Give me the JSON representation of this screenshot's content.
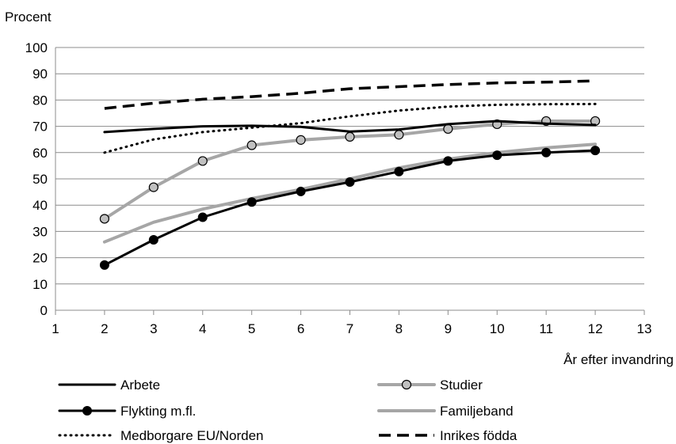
{
  "chart_data": {
    "type": "line",
    "title": "",
    "ylabel": "Procent",
    "xlabel": "År efter invandring",
    "xlim": [
      1,
      13
    ],
    "ylim": [
      0,
      100
    ],
    "xticks": [
      1,
      2,
      3,
      4,
      5,
      6,
      7,
      8,
      9,
      10,
      11,
      12,
      13
    ],
    "yticks": [
      0,
      10,
      20,
      30,
      40,
      50,
      60,
      70,
      80,
      90,
      100
    ],
    "grid": "horizontal",
    "legend_position": "bottom",
    "x": [
      2,
      3,
      4,
      5,
      6,
      7,
      8,
      9,
      10,
      11,
      12
    ],
    "series": [
      {
        "name": "Arbete",
        "values": [
          67.8,
          69,
          70,
          70.2,
          69.8,
          68,
          68.8,
          70.8,
          72,
          71,
          70.5
        ],
        "color": "#000000",
        "style": "solid",
        "marker": "none"
      },
      {
        "name": "Studier",
        "values": [
          34.8,
          46.8,
          56.8,
          62.8,
          64.8,
          66,
          66.8,
          69,
          70.8,
          72,
          72
        ],
        "color": "#a6a6a6",
        "style": "solid",
        "marker": "circle"
      },
      {
        "name": "Flykting m.fl.",
        "values": [
          17.2,
          26.8,
          35.4,
          41.2,
          45.2,
          48.8,
          52.8,
          56.8,
          59,
          60,
          60.8
        ],
        "color": "#000000",
        "style": "solid",
        "marker": "filled-circle"
      },
      {
        "name": "Familjeband",
        "values": [
          26,
          33.5,
          38.5,
          42.5,
          46,
          50,
          54.2,
          57.5,
          60,
          61.8,
          63.2
        ],
        "color": "#a6a6a6",
        "style": "solid",
        "marker": "none"
      },
      {
        "name": "Medborgare EU/Norden",
        "values": [
          60,
          65,
          67.8,
          69.5,
          71.2,
          73.8,
          76,
          77.5,
          78.2,
          78.4,
          78.5
        ],
        "color": "#000000",
        "style": "dotted",
        "marker": "none"
      },
      {
        "name": "Inrikes födda",
        "values": [
          76.8,
          78.8,
          80.3,
          81.3,
          82.6,
          84.3,
          85.1,
          85.9,
          86.5,
          86.8,
          87.3
        ],
        "color": "#000000",
        "style": "dashed",
        "marker": "none"
      }
    ]
  }
}
